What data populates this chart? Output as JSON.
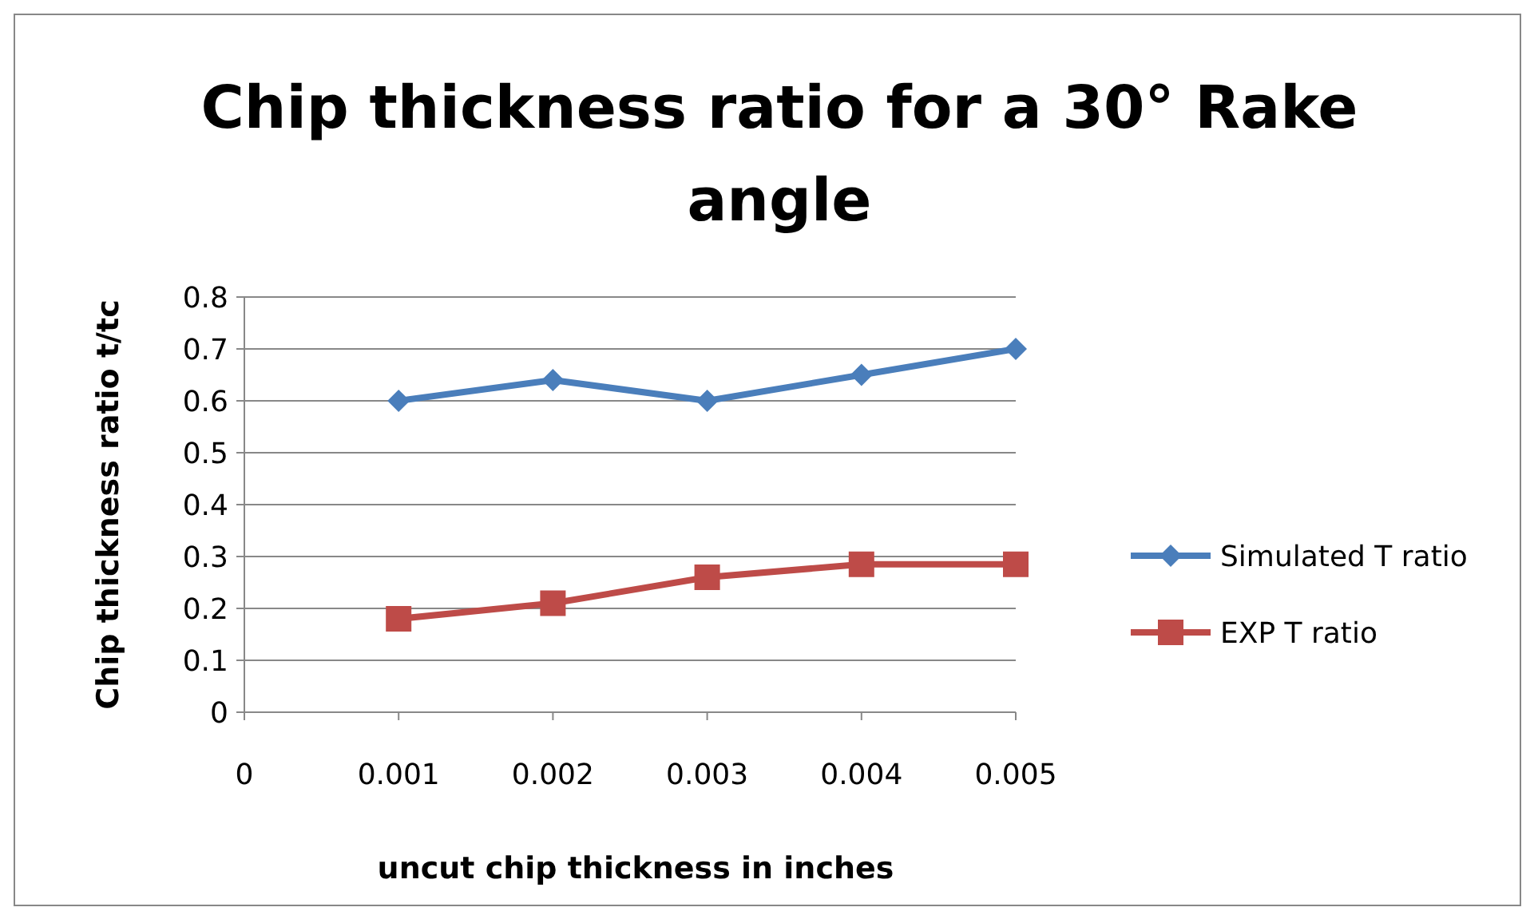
{
  "chart_data": {
    "type": "line",
    "title": "Chip thickness ratio for a 30° Rake angle",
    "xlabel": "uncut chip thickness in inches",
    "ylabel": "Chip thickness ratio t/tc",
    "x": [
      0.001,
      0.002,
      0.003,
      0.004,
      0.005
    ],
    "series": [
      {
        "name": "Simulated T ratio",
        "color": "#4a7ebb",
        "marker": "diamond",
        "values": [
          0.6,
          0.64,
          0.6,
          0.65,
          0.7
        ]
      },
      {
        "name": "EXP T ratio",
        "color": "#be4b48",
        "marker": "square",
        "values": [
          0.18,
          0.21,
          0.26,
          0.285,
          0.285
        ]
      }
    ],
    "xlim": [
      0,
      0.005
    ],
    "xticks": [
      0,
      0.001,
      0.002,
      0.003,
      0.004,
      0.005
    ],
    "ylim": [
      0,
      0.8
    ],
    "yticks": [
      0,
      0.1,
      0.2,
      0.3,
      0.4,
      0.5,
      0.6,
      0.7,
      0.8
    ],
    "grid": "y",
    "legend": "right"
  }
}
